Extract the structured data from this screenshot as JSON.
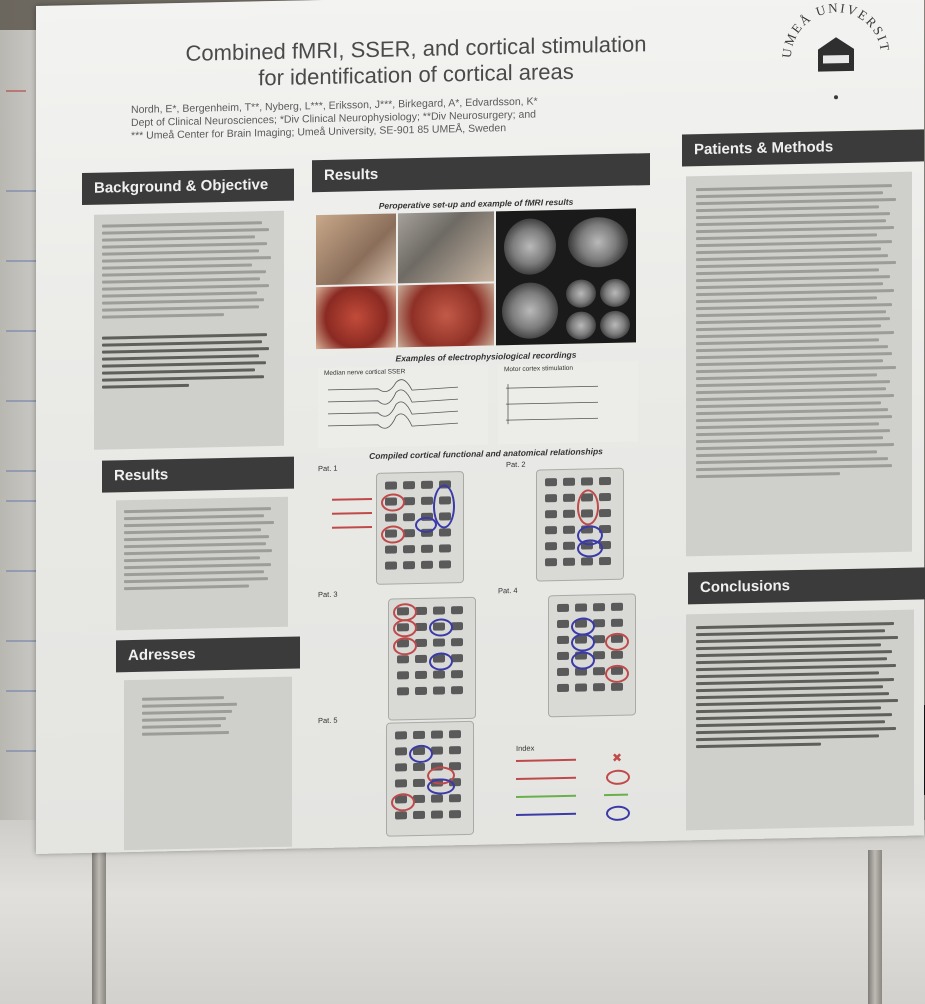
{
  "poster": {
    "title_line1": "Combined fMRI, SSER, and cortical stimulation",
    "title_line2": "for identification of cortical areas",
    "authors_line1": "Nordh, E*, Bergenheim, T**, Nyberg, L***, Eriksson, J***, Birkegard, A*, Edvardsson, K*",
    "authors_line2": "Dept of Clinical Neurosciences; *Div Clinical Neurophysiology; **Div Neurosurgery; and",
    "authors_line3": "*** Umeå Center for Brain Imaging; Umeå University, SE-901 85  UMEÅ, Sweden",
    "logo_text": "UMEÅ UNIVERSITET"
  },
  "sections": {
    "background_title": "Background & Objective",
    "results_left_title": "Results",
    "addresses_title": "Adresses",
    "results_center_title": "Results",
    "patients_methods_title": "Patients & Methods",
    "conclusions_title": "Conclusions"
  },
  "figures": {
    "caption_setup": "Peroperative set-up and  example of fMRI results",
    "caption_ephys": "Examples of electrophysiological recordings",
    "label_median": "Median nerve cortical SSER",
    "label_motor": "Motor cortex stimulation",
    "caption_compiled": "Compiled cortical functional and anatomical relationships",
    "pat1": "Pat. 1",
    "pat2": "Pat. 2",
    "pat3": "Pat. 3",
    "pat4": "Pat. 4",
    "pat5": "Pat. 5",
    "index_title": "Index"
  },
  "colors": {
    "header_bg": "#3b3b3b",
    "panel_bg": "#cfcfcb",
    "accent_red": "#c04a4a",
    "accent_blue": "#3a3aa8"
  }
}
